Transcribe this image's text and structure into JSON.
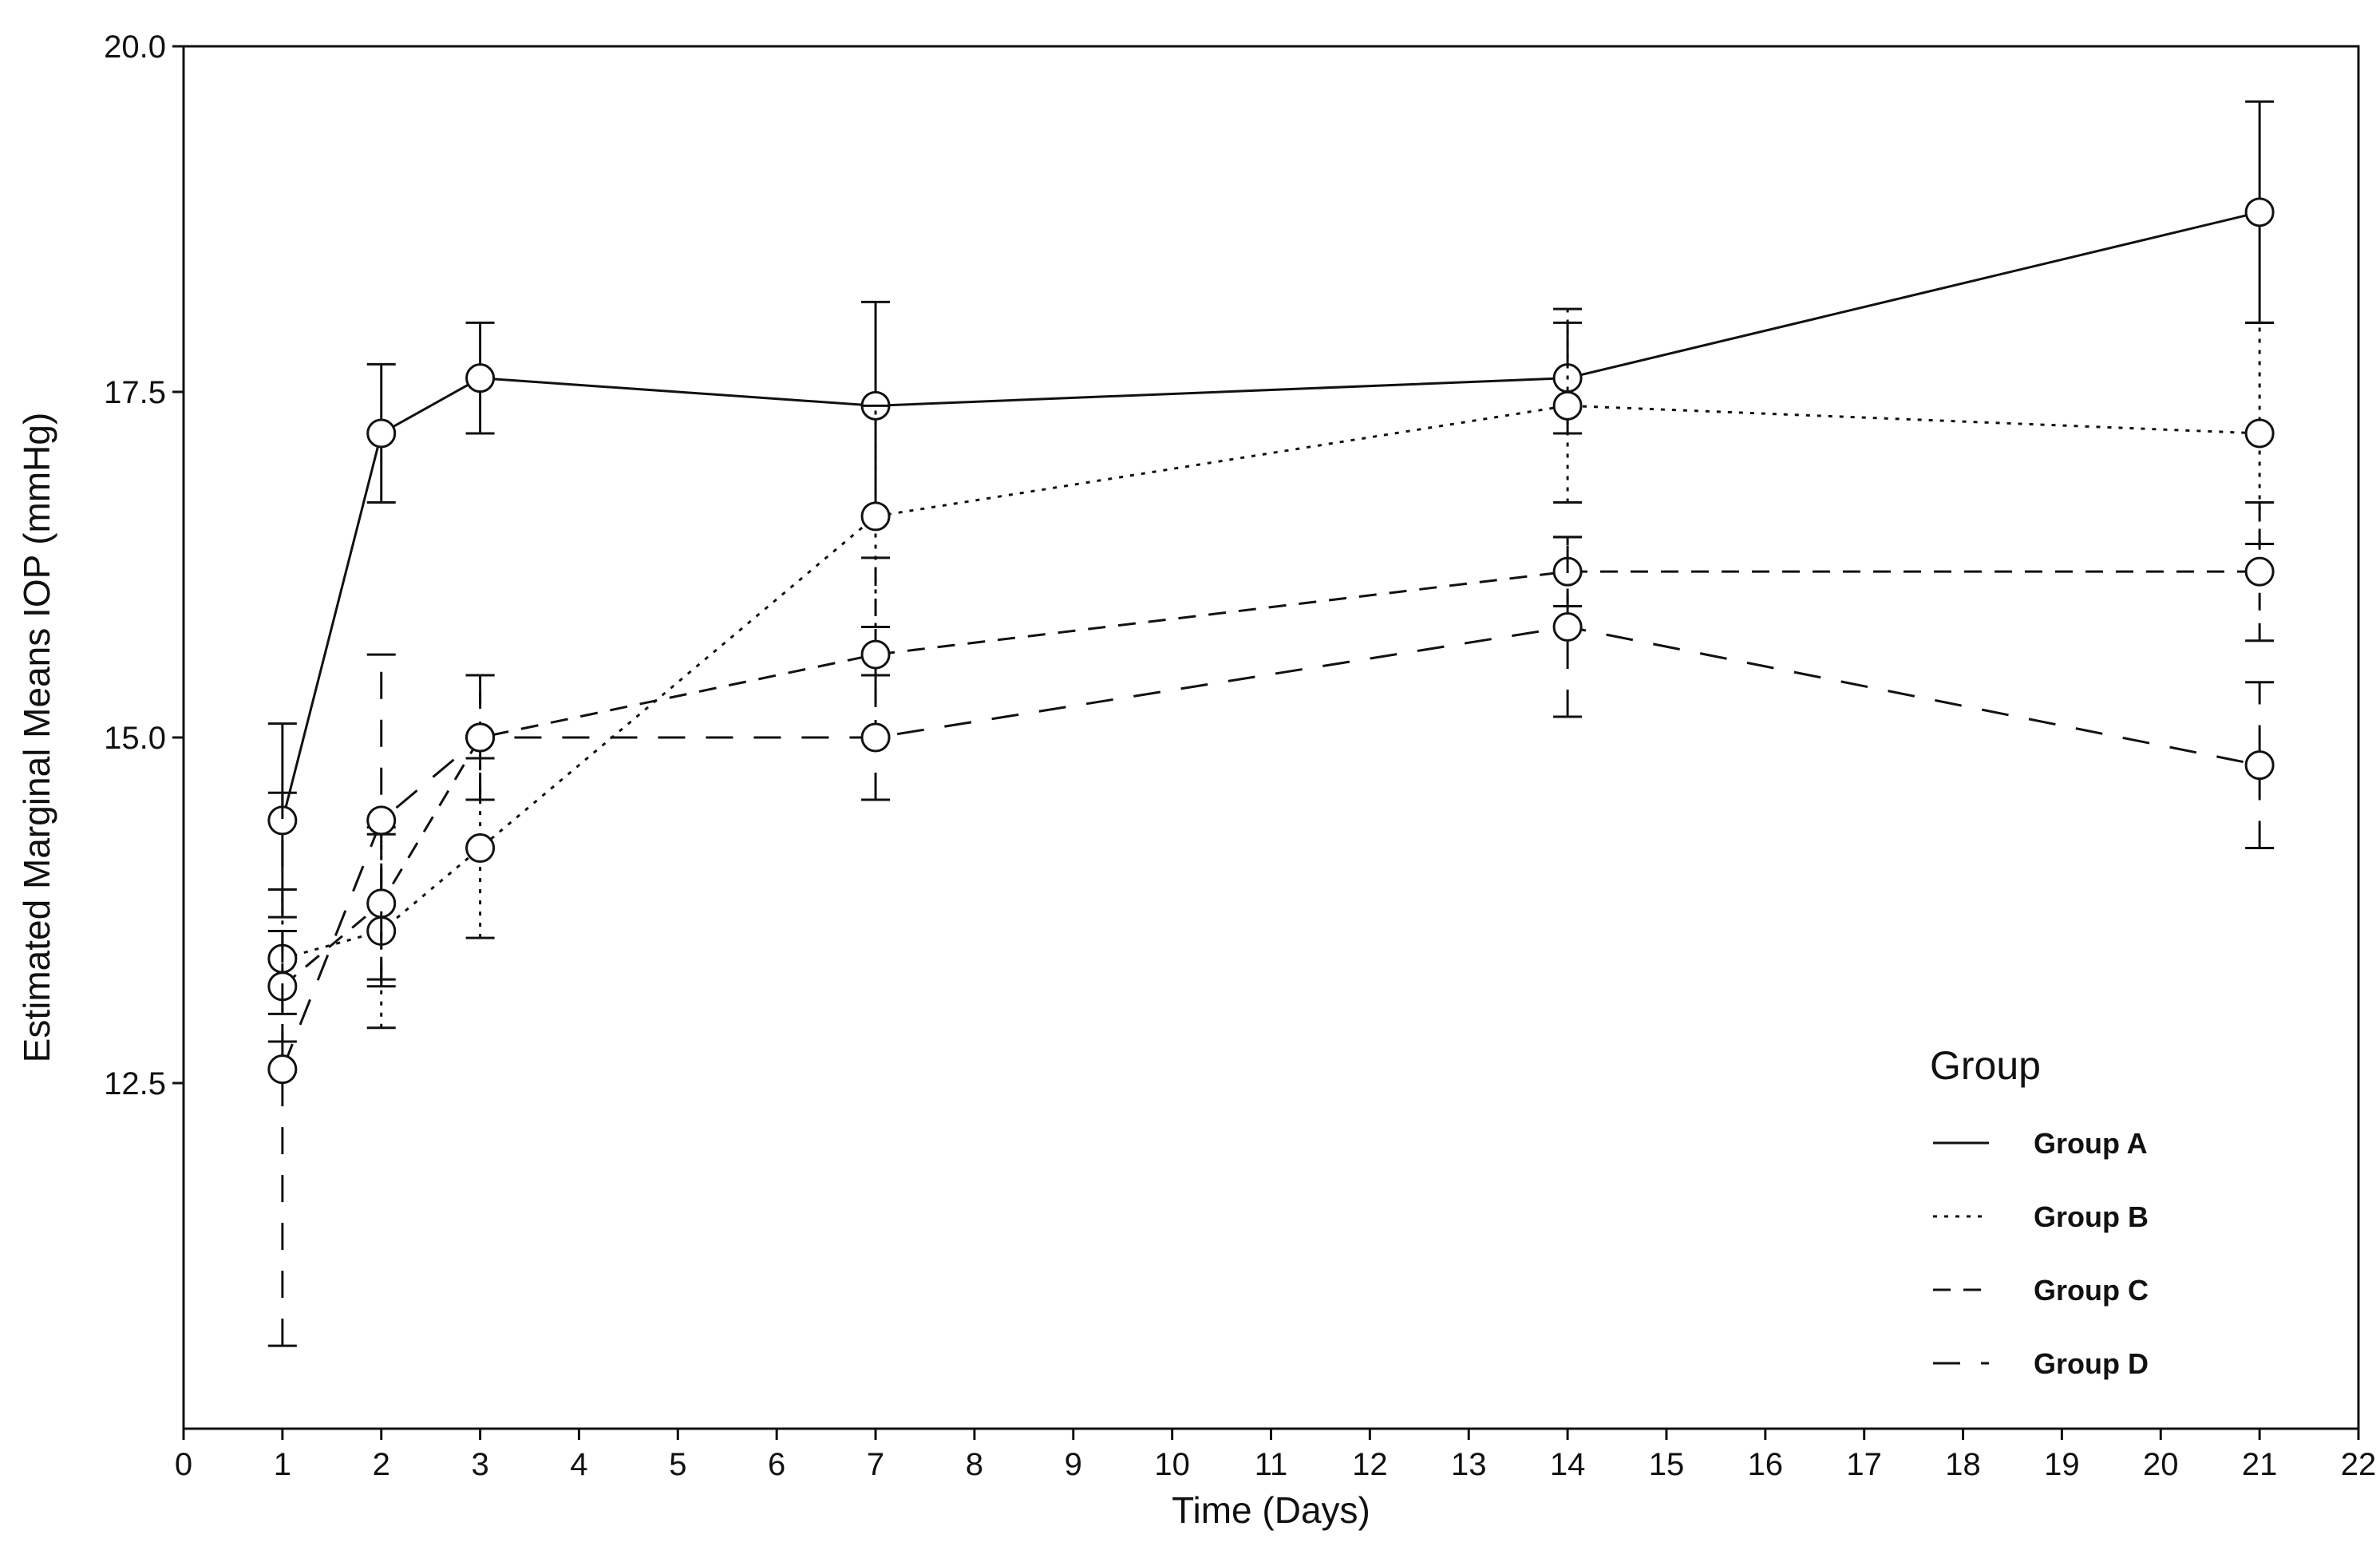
{
  "chart_data": {
    "type": "line",
    "title": "",
    "xlabel": "Time (Days)",
    "ylabel": "Estimated Marginal Means IOP (mmHg)",
    "xlim": [
      0,
      22
    ],
    "ylim": [
      10.0,
      20.0
    ],
    "x_ticks": [
      0,
      1,
      2,
      3,
      4,
      5,
      6,
      7,
      8,
      9,
      10,
      11,
      12,
      13,
      14,
      15,
      16,
      17,
      18,
      19,
      20,
      21,
      22
    ],
    "y_ticks": [
      12.5,
      15.0,
      17.5,
      20.0
    ],
    "y_tick_labels": [
      "12.5",
      "15.0",
      "17.5",
      "20.0"
    ],
    "grid": false,
    "legend": {
      "title": "Group",
      "position": "bottom-right"
    },
    "x": [
      1,
      2,
      3,
      7,
      14,
      21
    ],
    "series": [
      {
        "name": "Group A",
        "dash": "solid",
        "values": [
          14.4,
          17.2,
          17.6,
          17.4,
          17.6,
          18.8
        ],
        "error_low": [
          13.7,
          16.7,
          17.2,
          16.6,
          17.2,
          18.0
        ],
        "error_high": [
          15.1,
          17.7,
          18.0,
          18.15,
          18.0,
          19.6
        ]
      },
      {
        "name": "Group B",
        "dash": "dotted",
        "values": [
          13.4,
          13.6,
          14.2,
          16.6,
          17.4,
          17.2
        ],
        "error_low": [
          13.0,
          12.9,
          13.55,
          15.8,
          16.7,
          16.4
        ],
        "error_high": [
          13.9,
          14.3,
          14.85,
          17.4,
          18.1,
          18.0
        ]
      },
      {
        "name": "Group C",
        "dash": "dashed",
        "values": [
          13.2,
          13.8,
          15.0,
          15.6,
          16.2,
          16.2
        ],
        "error_low": [
          12.8,
          13.25,
          14.55,
          15.0,
          15.95,
          15.7
        ],
        "error_high": [
          13.6,
          14.35,
          15.45,
          16.3,
          16.45,
          16.7
        ]
      },
      {
        "name": "Group D",
        "dash": "longdash",
        "values": [
          12.6,
          14.4,
          15.0,
          15.0,
          15.8,
          14.8
        ],
        "error_low": [
          10.6,
          13.2,
          14.55,
          14.55,
          15.15,
          14.2
        ],
        "error_high": [
          14.6,
          15.6,
          15.45,
          15.45,
          16.45,
          15.4
        ]
      }
    ]
  }
}
